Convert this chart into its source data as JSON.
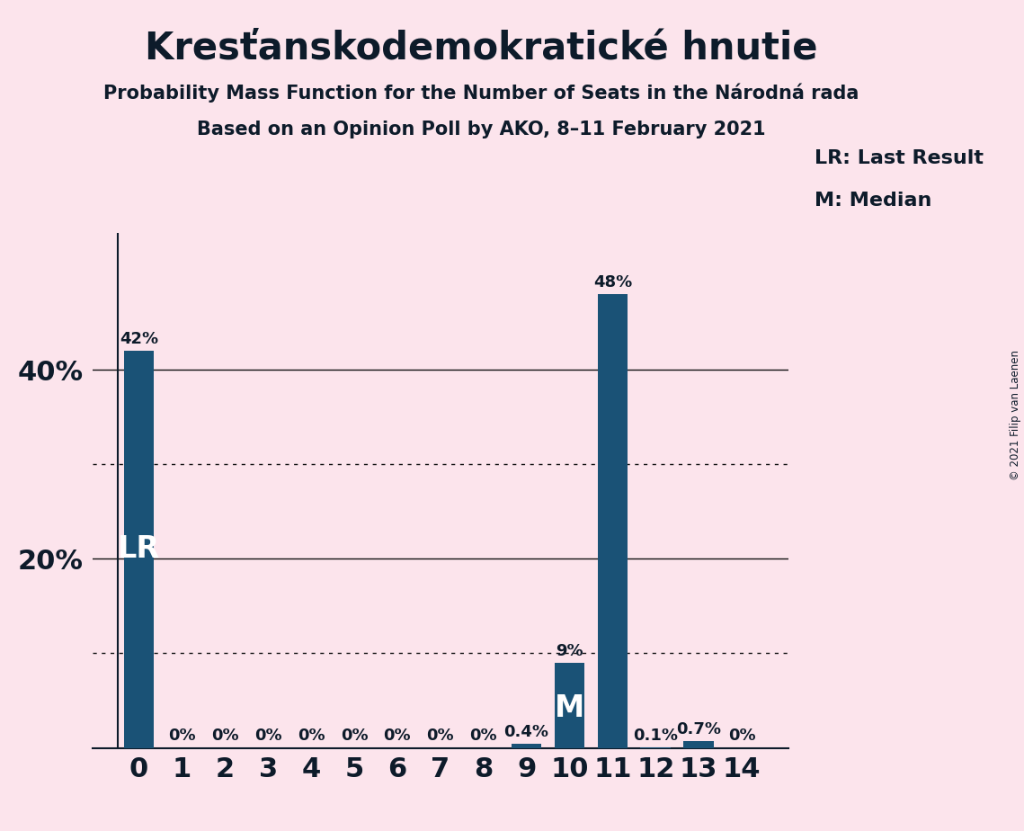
{
  "title": "Kresťanskodemokratické hnutie",
  "subtitle1": "Probability Mass Function for the Number of Seats in the Národná rada",
  "subtitle2": "Based on an Opinion Poll by AKO, 8–11 February 2021",
  "copyright": "© 2021 Filip van Laenen",
  "categories": [
    0,
    1,
    2,
    3,
    4,
    5,
    6,
    7,
    8,
    9,
    10,
    11,
    12,
    13,
    14
  ],
  "values": [
    0.42,
    0.0,
    0.0,
    0.0,
    0.0,
    0.0,
    0.0,
    0.0,
    0.0,
    0.004,
    0.09,
    0.48,
    0.001,
    0.007,
    0.0
  ],
  "bar_labels": [
    "42%",
    "0%",
    "0%",
    "0%",
    "0%",
    "0%",
    "0%",
    "0%",
    "0%",
    "0.4%",
    "9%",
    "48%",
    "0.1%",
    "0.7%",
    "0%"
  ],
  "bar_color": "#1a5276",
  "background_color": "#fce4ec",
  "text_color": "#0d1b2a",
  "white_text": "#ffffff",
  "lr_bar_index": 0,
  "median_bar_index": 10,
  "legend_lr": "LR: Last Result",
  "legend_m": "M: Median",
  "figsize": [
    11.39,
    9.24
  ],
  "dpi": 100
}
